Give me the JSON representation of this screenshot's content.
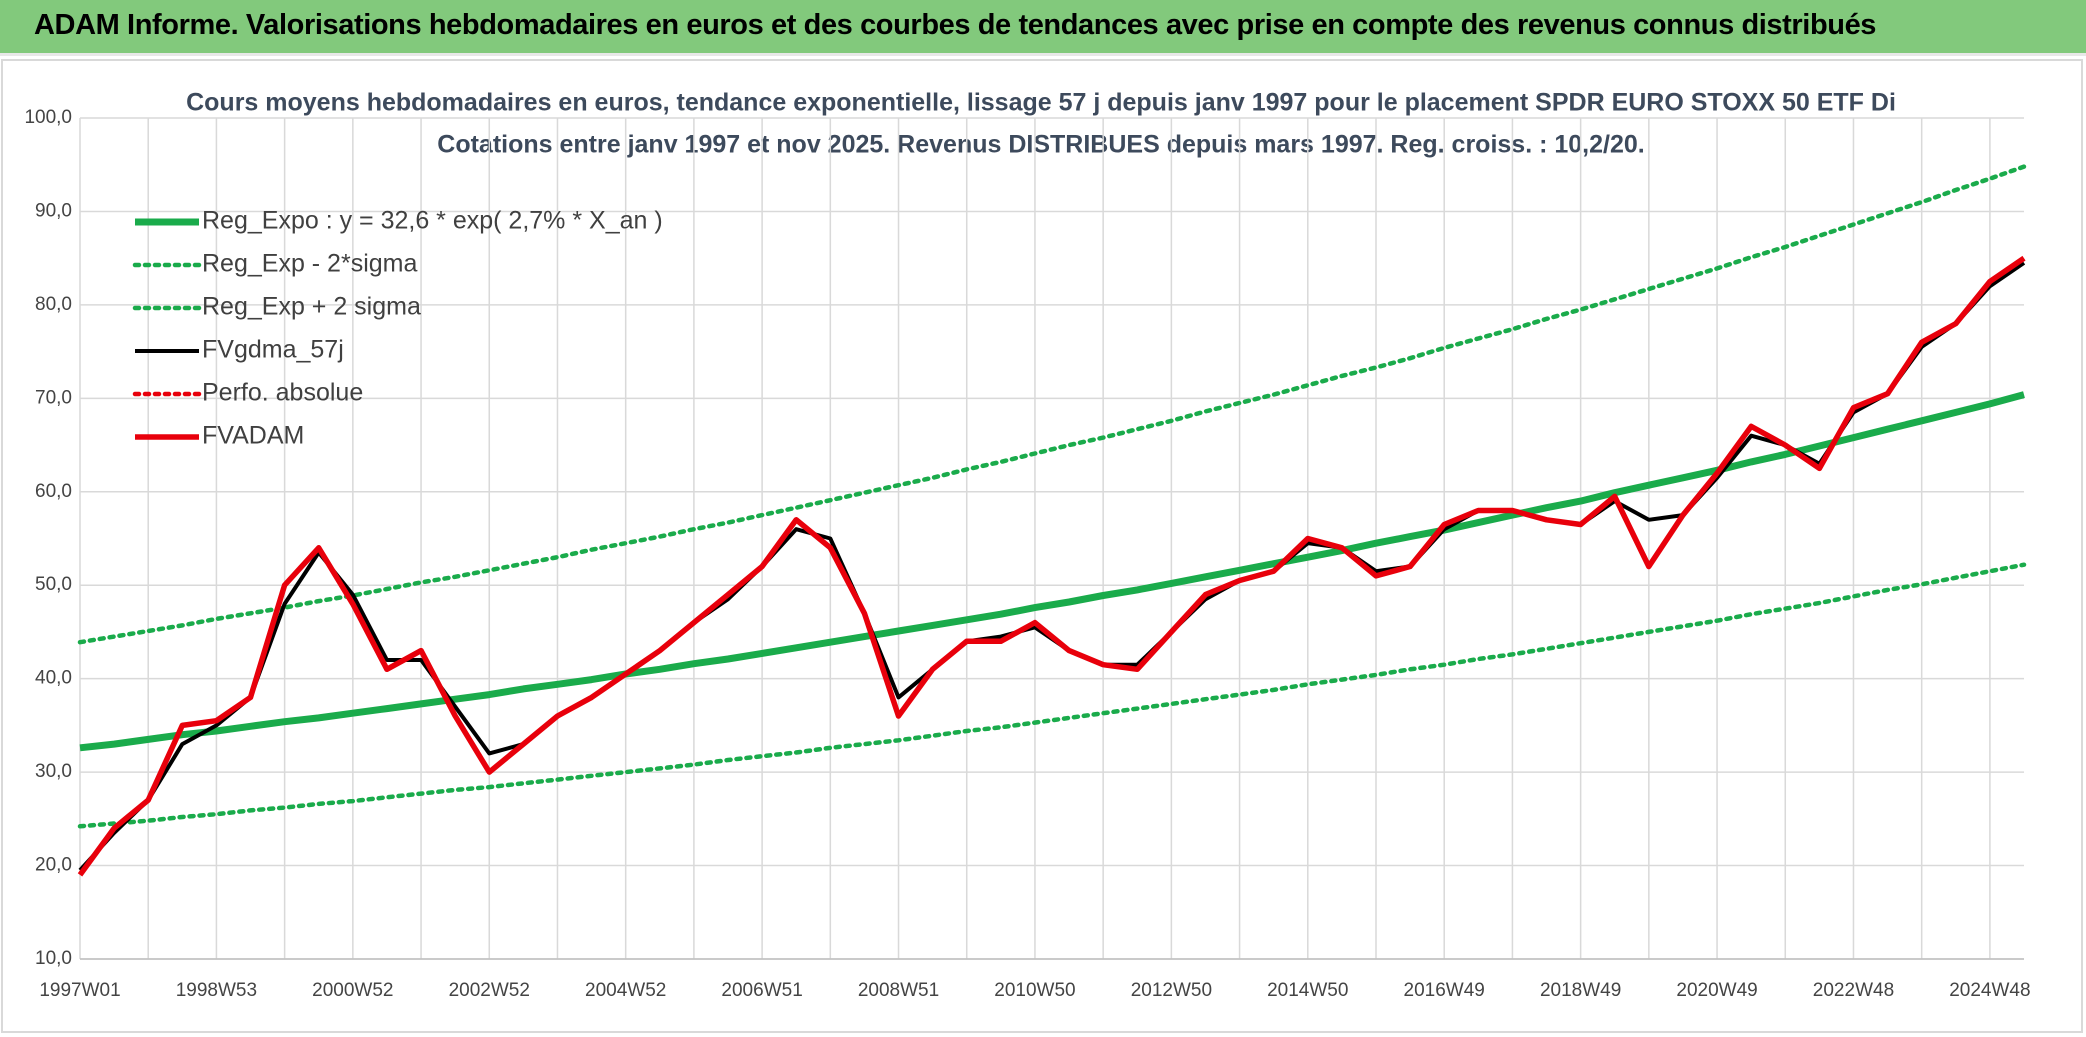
{
  "header": {
    "title": "ADAM Informe. Valorisations hebdomadaires en euros et des courbes de tendances avec prise en compte des revenus connus distribués"
  },
  "chart_data": {
    "type": "line",
    "title": "Cours moyens hebdomadaires en euros, tendance exponentielle, lissage 57 j depuis janv 1997 pour le placement SPDR EURO STOXX 50 ETF Di",
    "subtitle": "Cotations entre janv 1997 et nov 2025. Revenus DISTRIBUES depuis mars 1997. Reg. croiss. : 10,2/20.",
    "categories": [
      "1997W01",
      null,
      null,
      null,
      "1998W53",
      null,
      null,
      null,
      "2000W52",
      null,
      null,
      null,
      "2002W52",
      null,
      null,
      null,
      "2004W52",
      null,
      null,
      null,
      "2006W51",
      null,
      null,
      null,
      "2008W51",
      null,
      null,
      null,
      "2010W50",
      null,
      null,
      null,
      "2012W50",
      null,
      null,
      null,
      "2014W50",
      null,
      null,
      null,
      "2016W49",
      null,
      null,
      null,
      "2018W49",
      null,
      null,
      null,
      "2020W49",
      null,
      null,
      null,
      "2022W48",
      null,
      null,
      null,
      "2024W48",
      null
    ],
    "ylim": [
      10,
      100
    ],
    "yticks": [
      {
        "value": 10,
        "label": "10,0"
      },
      {
        "value": 20,
        "label": "20,0"
      },
      {
        "value": 30,
        "label": "30,0"
      },
      {
        "value": 40,
        "label": "40,0"
      },
      {
        "value": 50,
        "label": "50,0"
      },
      {
        "value": 60,
        "label": "60,0"
      },
      {
        "value": 70,
        "label": "70,0"
      },
      {
        "value": 80,
        "label": "80,0"
      },
      {
        "value": 90,
        "label": "90,0"
      },
      {
        "value": 100,
        "label": "100,0"
      }
    ],
    "grid": true,
    "legend": "top-left",
    "series": [
      {
        "name": "Reg_Expo : y = 32,6 * exp( 2,7% *  X_an )",
        "color": "#1aab4b",
        "style": "thick",
        "values": [
          32.6,
          33.0,
          33.5,
          34.0,
          34.4,
          34.9,
          35.4,
          35.8,
          36.3,
          36.8,
          37.3,
          37.8,
          38.3,
          38.9,
          39.4,
          39.9,
          40.5,
          41.0,
          41.6,
          42.1,
          42.7,
          43.3,
          43.9,
          44.5,
          45.1,
          45.7,
          46.3,
          46.9,
          47.6,
          48.2,
          48.9,
          49.5,
          50.2,
          50.9,
          51.6,
          52.3,
          53.0,
          53.7,
          54.5,
          55.2,
          55.9,
          56.7,
          57.5,
          58.3,
          59.0,
          59.9,
          60.7,
          61.5,
          62.3,
          63.2,
          64.0,
          64.9,
          65.8,
          66.7,
          67.6,
          68.5,
          69.4,
          70.4
        ]
      },
      {
        "name": "Reg_Exp - 2*sigma",
        "color": "#1aab4b",
        "style": "dotted",
        "values": [
          24.2,
          24.5,
          24.8,
          25.2,
          25.5,
          25.9,
          26.2,
          26.6,
          26.9,
          27.3,
          27.7,
          28.1,
          28.4,
          28.8,
          29.2,
          29.6,
          30.0,
          30.4,
          30.8,
          31.3,
          31.7,
          32.1,
          32.6,
          33.0,
          33.4,
          33.9,
          34.4,
          34.8,
          35.3,
          35.8,
          36.3,
          36.8,
          37.3,
          37.8,
          38.3,
          38.8,
          39.4,
          39.9,
          40.4,
          41.0,
          41.5,
          42.1,
          42.6,
          43.2,
          43.8,
          44.4,
          45.0,
          45.6,
          46.2,
          46.9,
          47.5,
          48.1,
          48.8,
          49.5,
          50.1,
          50.8,
          51.5,
          52.2
        ]
      },
      {
        "name": "Reg_Exp + 2 sigma",
        "color": "#1aab4b",
        "style": "dotted",
        "values": [
          43.9,
          44.5,
          45.1,
          45.7,
          46.4,
          47.0,
          47.6,
          48.3,
          48.9,
          49.6,
          50.3,
          50.9,
          51.6,
          52.3,
          53.0,
          53.8,
          54.5,
          55.2,
          56.0,
          56.7,
          57.5,
          58.3,
          59.1,
          59.9,
          60.7,
          61.5,
          62.4,
          63.2,
          64.1,
          65.0,
          65.8,
          66.7,
          67.6,
          68.6,
          69.5,
          70.4,
          71.4,
          72.4,
          73.3,
          74.3,
          75.4,
          76.4,
          77.4,
          78.5,
          79.5,
          80.6,
          81.7,
          82.8,
          83.9,
          85.1,
          86.2,
          87.4,
          88.6,
          89.8,
          91.0,
          92.3,
          93.5,
          94.8
        ]
      },
      {
        "name": "FVgdma_57j",
        "color": "#000000",
        "style": "solid",
        "values": [
          19.5,
          23.5,
          27,
          33,
          35,
          38,
          48,
          53.5,
          49,
          42,
          42,
          37,
          32,
          33,
          36,
          38,
          40.5,
          43,
          46,
          48.5,
          52,
          56,
          55,
          47,
          38,
          41,
          44,
          44.5,
          45.5,
          43,
          41.5,
          41.5,
          45,
          48.5,
          50.5,
          51.5,
          54.5,
          54,
          51.5,
          52,
          56,
          58,
          58,
          57,
          56.5,
          59,
          57,
          57.5,
          61.5,
          66,
          65,
          63,
          68.5,
          70.5,
          75.5,
          78,
          82,
          84.5
        ]
      },
      {
        "name": "Perfo. absolue",
        "color": "#e8000b",
        "style": "dotted",
        "values": [
          null,
          null,
          null,
          null,
          null,
          null,
          null,
          null,
          null,
          null,
          null,
          null,
          null,
          null,
          null,
          null,
          null,
          null,
          null,
          null,
          null,
          null,
          null,
          null,
          null,
          null,
          null,
          null,
          null,
          null,
          null,
          null,
          null,
          null,
          null,
          null,
          null,
          null,
          null,
          null,
          null,
          null,
          null,
          null,
          null,
          null,
          null,
          null,
          null,
          null,
          null,
          null,
          null,
          null,
          null,
          null,
          null,
          null
        ]
      },
      {
        "name": "FVADAM",
        "color": "#e8000b",
        "style": "thick-red",
        "values": [
          19,
          24,
          27,
          35,
          35.5,
          38,
          50,
          54,
          48,
          41,
          43,
          36,
          30,
          33,
          36,
          38,
          40.5,
          43,
          46,
          49,
          52,
          57,
          54,
          47,
          36,
          41,
          44,
          44,
          46,
          43,
          41.5,
          41,
          45,
          49,
          50.5,
          51.5,
          55,
          54,
          51,
          52,
          56.5,
          58,
          58,
          57,
          56.5,
          59.5,
          52,
          57.5,
          62,
          67,
          65,
          62.5,
          69,
          70.5,
          76,
          78,
          82.5,
          85
        ]
      }
    ]
  }
}
